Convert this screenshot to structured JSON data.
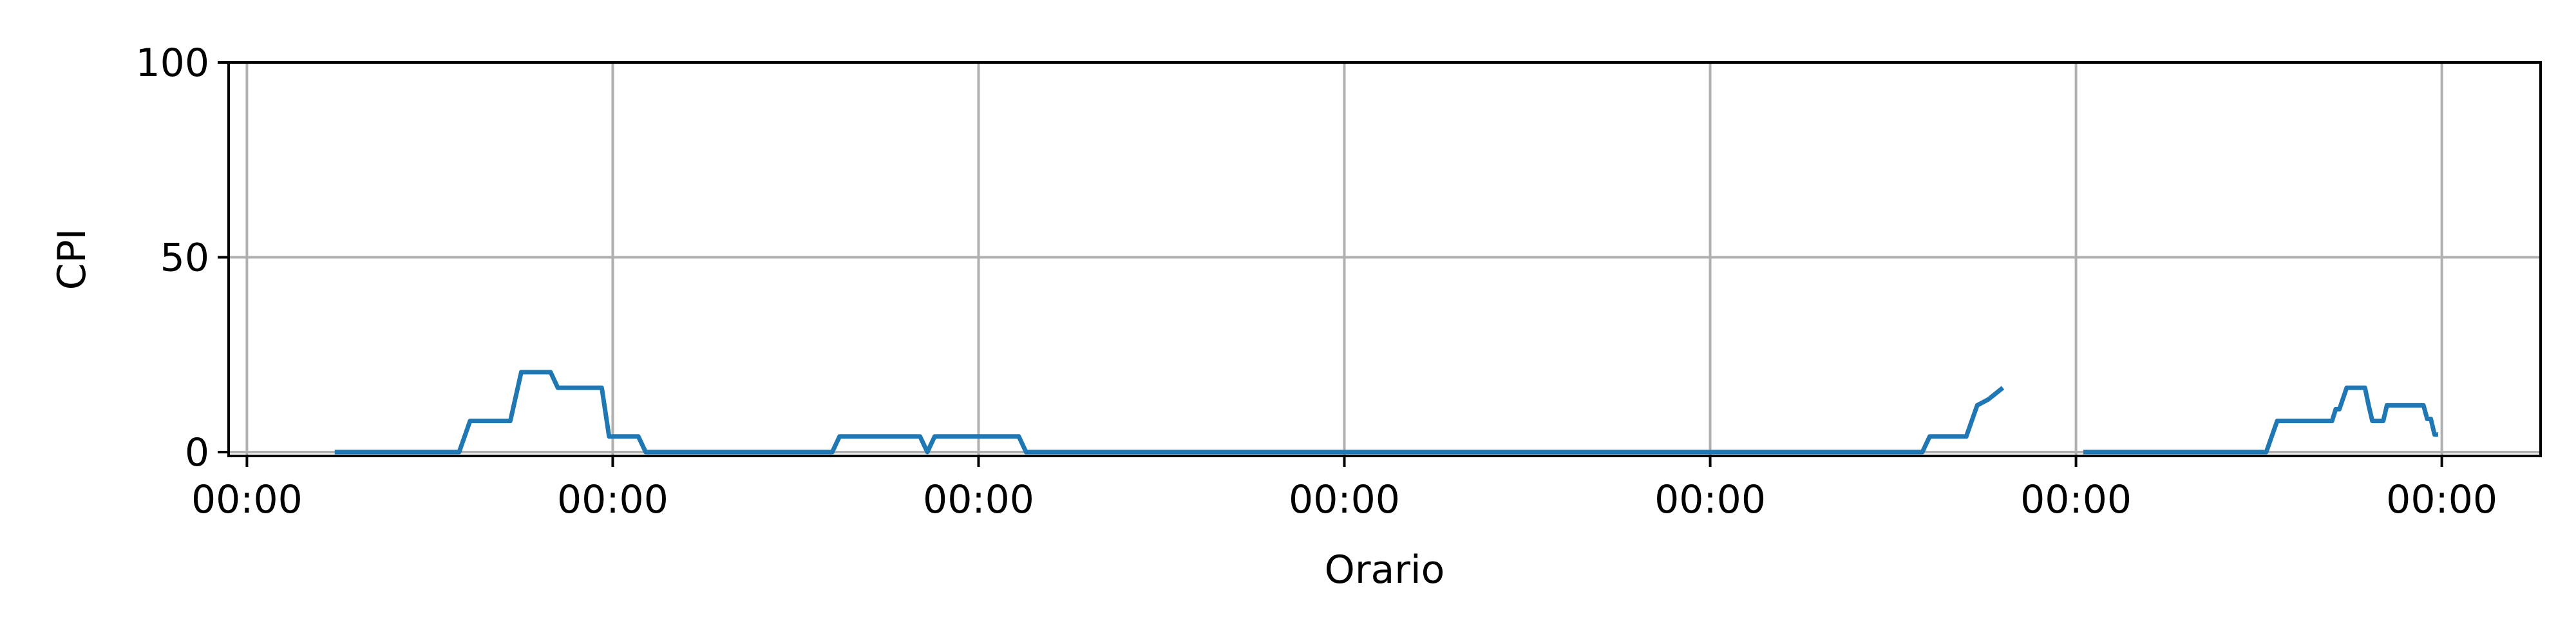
{
  "chart_data": {
    "type": "line",
    "title": "",
    "xlabel": "Orario",
    "ylabel": "CPI",
    "x_tick_labels": [
      "00:00",
      "00:00",
      "00:00",
      "00:00",
      "00:00",
      "00:00",
      "00:00"
    ],
    "x_tick_values": [
      0,
      1,
      2,
      3,
      4,
      5,
      6
    ],
    "xlim": [
      -0.05,
      6.27
    ],
    "y_ticks": [
      0,
      50,
      100
    ],
    "y_tick_labels": [
      "0",
      "50",
      "100"
    ],
    "ylim": [
      -1,
      100
    ],
    "grid": true,
    "series_color": "#1f77b4",
    "grid_color": "#b0b0b0",
    "series": [
      {
        "segments": [
          [
            [
              0.24,
              0
            ],
            [
              0.58,
              0
            ],
            [
              0.61,
              8
            ],
            [
              0.72,
              8
            ],
            [
              0.75,
              20.5
            ],
            [
              0.83,
              20.5
            ],
            [
              0.85,
              16.5
            ],
            [
              0.97,
              16.5
            ],
            [
              0.99,
              4
            ],
            [
              1.07,
              4
            ],
            [
              1.09,
              0
            ],
            [
              1.6,
              0
            ],
            [
              1.62,
              4
            ],
            [
              1.84,
              4
            ],
            [
              1.86,
              0
            ],
            [
              1.88,
              4
            ],
            [
              1.96,
              4
            ],
            [
              2.04,
              4
            ],
            [
              2.11,
              4
            ],
            [
              2.13,
              0
            ],
            [
              4.58,
              0
            ],
            [
              4.6,
              4
            ],
            [
              4.7,
              4
            ],
            [
              4.73,
              12
            ],
            [
              4.76,
              13.5
            ],
            [
              4.8,
              16.5
            ]
          ],
          [
            [
              5.02,
              0
            ],
            [
              5.52,
              0
            ],
            [
              5.55,
              8
            ],
            [
              5.7,
              8
            ],
            [
              5.71,
              11
            ],
            [
              5.72,
              11
            ],
            [
              5.74,
              16.5
            ],
            [
              5.79,
              16.5
            ],
            [
              5.8,
              12
            ],
            [
              5.81,
              8
            ],
            [
              5.84,
              8
            ],
            [
              5.85,
              12
            ],
            [
              5.95,
              12
            ],
            [
              5.96,
              8.5
            ],
            [
              5.97,
              8.5
            ],
            [
              5.98,
              4.5
            ],
            [
              5.99,
              4.5
            ]
          ]
        ]
      }
    ]
  }
}
